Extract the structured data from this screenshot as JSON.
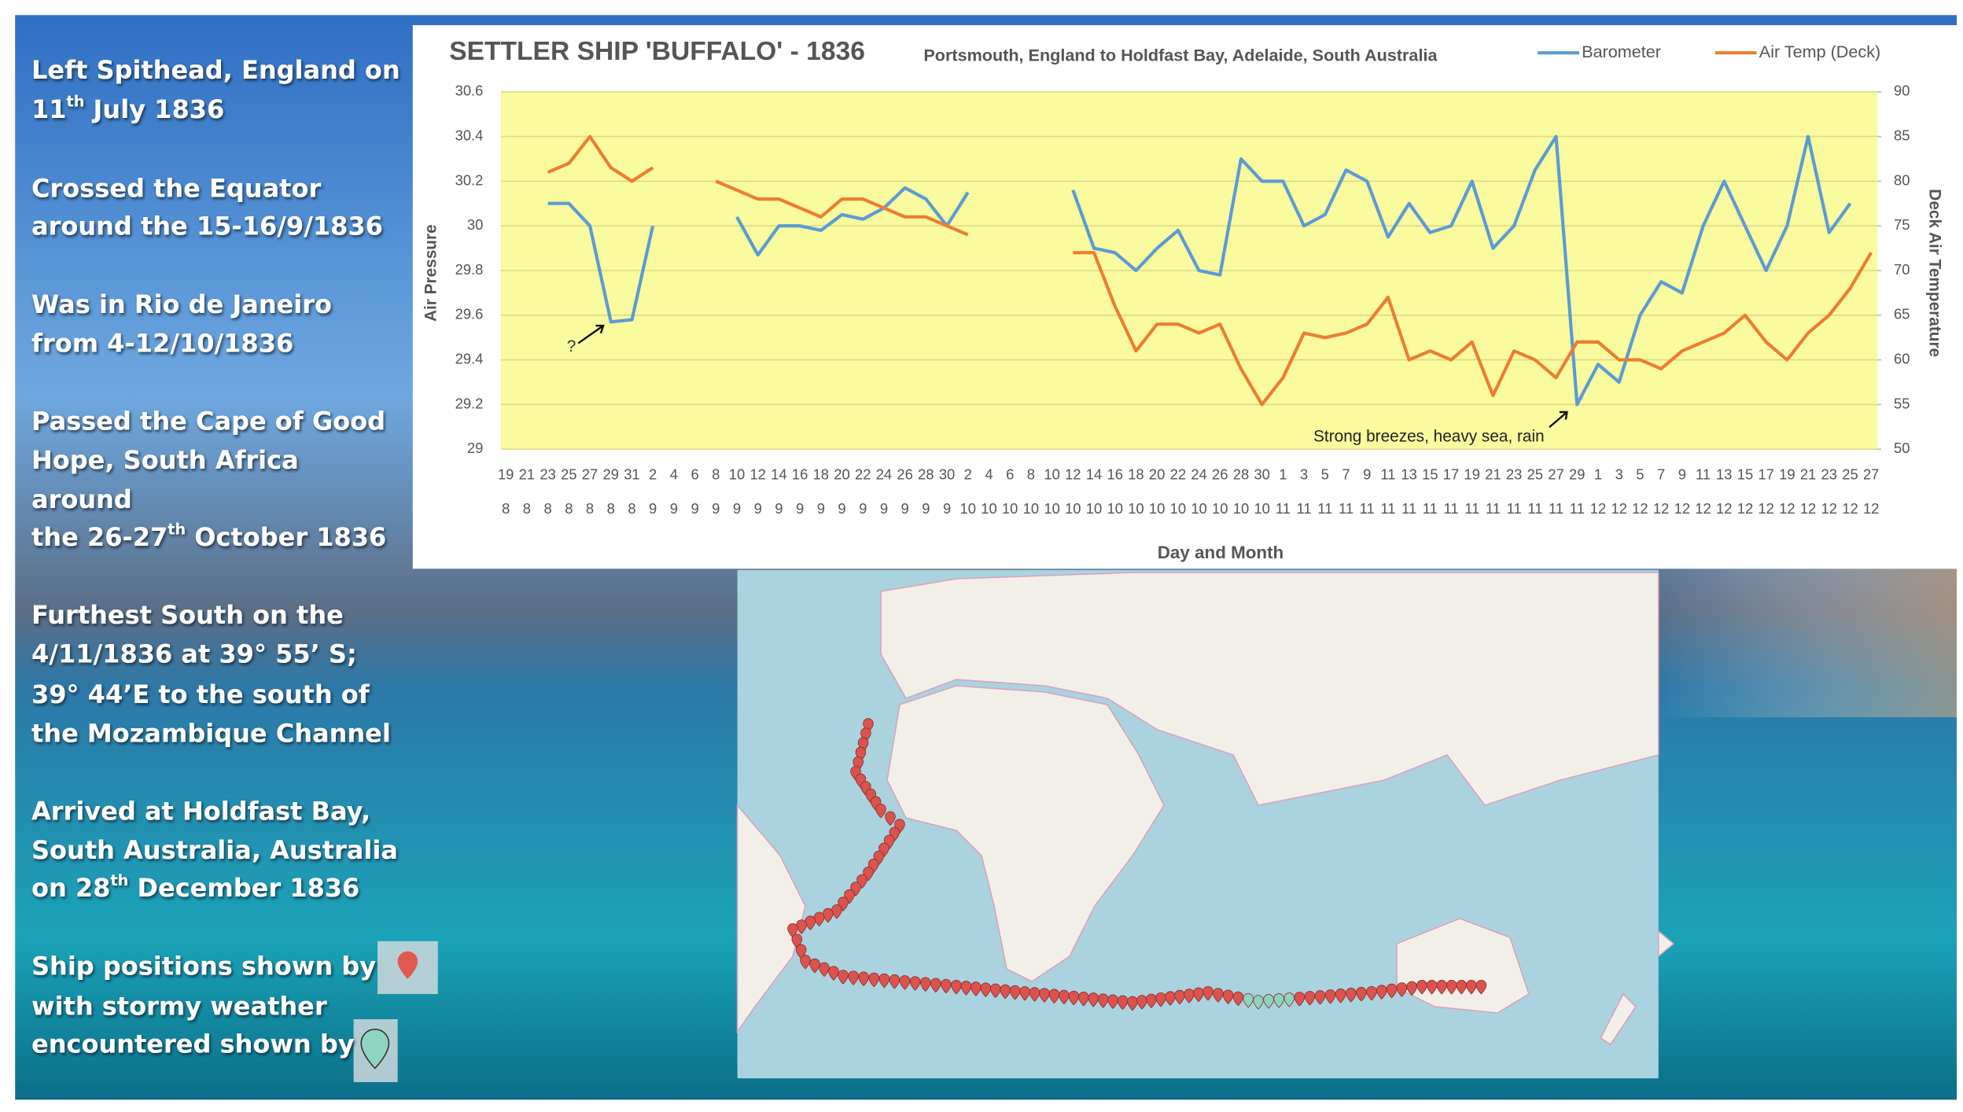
{
  "notes": [
    [
      [
        "Left Spithead, England on"
      ],
      [
        "11",
        {
          "sup": "th"
        },
        " July 1836"
      ]
    ],
    [
      [
        "Crossed the Equator"
      ],
      [
        "around the 15-16/9/1836"
      ]
    ],
    [
      [
        "Was in Rio de Janeiro"
      ],
      [
        "from 4-12/10/1836"
      ]
    ],
    [
      [
        "Passed the Cape of Good"
      ],
      [
        "Hope, South Africa"
      ],
      [
        "around"
      ],
      [
        "the 26-27",
        {
          "sup": "th"
        },
        " October 1836"
      ]
    ],
    [
      [
        "Furthest South on the"
      ],
      [
        "4/11/1836 at 39° 55’ S;"
      ],
      [
        "39° 44’E to the south of"
      ],
      [
        "the Mozambique Channel"
      ]
    ],
    [
      [
        "Arrived at Holdfast Bay,"
      ],
      [
        "South Australia, Australia"
      ],
      [
        "on 28",
        {
          "sup": "th"
        },
        " December 1836"
      ]
    ],
    [
      [
        "Ship positions shown by"
      ],
      [
        "with stormy weather"
      ],
      [
        "encountered shown by"
      ]
    ]
  ],
  "chart_data": {
    "type": "line",
    "title": "SETTLER SHIP 'BUFFALO' - 1836",
    "subtitle": "Portsmouth, England to Holdfast Bay, Adelaide, South Australia",
    "x_label": "Day and Month",
    "y_label": "Air Pressure",
    "y2_label": "Deck Air Temperature",
    "categories": [
      "19",
      "21",
      "23",
      "25",
      "27",
      "29",
      "31",
      "2",
      "4",
      "6",
      "8",
      "10",
      "12",
      "14",
      "16",
      "18",
      "20",
      "22",
      "24",
      "26",
      "28",
      "30",
      "2",
      "4",
      "6",
      "8",
      "10",
      "12",
      "14",
      "16",
      "18",
      "20",
      "22",
      "24",
      "26",
      "28",
      "30",
      "1",
      "3",
      "5",
      "7",
      "9",
      "11",
      "13",
      "15",
      "17",
      "19",
      "21",
      "23",
      "25",
      "27",
      "29",
      "1",
      "3",
      "5",
      "7",
      "9",
      "11",
      "13",
      "15",
      "17",
      "19",
      "21",
      "23",
      "25",
      "27"
    ],
    "category_months": [
      "8",
      "8",
      "8",
      "8",
      "8",
      "8",
      "8",
      "9",
      "9",
      "9",
      "9",
      "9",
      "9",
      "9",
      "9",
      "9",
      "9",
      "9",
      "9",
      "9",
      "9",
      "9",
      "10",
      "10",
      "10",
      "10",
      "10",
      "10",
      "10",
      "10",
      "10",
      "10",
      "10",
      "10",
      "10",
      "10",
      "10",
      "11",
      "11",
      "11",
      "11",
      "11",
      "11",
      "11",
      "11",
      "11",
      "11",
      "11",
      "11",
      "11",
      "11",
      "11",
      "12",
      "12",
      "12",
      "12",
      "12",
      "12",
      "12",
      "12",
      "12",
      "12",
      "12",
      "12",
      "12",
      "12"
    ],
    "series": [
      {
        "name": "Barometer",
        "color": "#5b9bd5",
        "values": [
          null,
          null,
          30.1,
          30.1,
          30.0,
          29.57,
          29.58,
          30.0,
          null,
          null,
          null,
          30.04,
          29.87,
          30.0,
          30.0,
          29.98,
          30.05,
          30.03,
          30.08,
          30.17,
          30.12,
          30.0,
          30.15,
          null,
          null,
          null,
          null,
          30.16,
          29.9,
          29.88,
          29.8,
          29.9,
          29.98,
          29.8,
          29.78,
          30.3,
          30.2,
          30.2,
          30.0,
          30.05,
          30.25,
          30.2,
          29.95,
          30.1,
          29.97,
          30.0,
          30.2,
          29.9,
          30.0,
          30.25,
          30.4,
          29.2,
          29.38,
          29.3,
          29.6,
          29.75,
          29.7,
          30.0,
          30.2,
          30.0,
          29.8,
          30.0,
          30.4,
          29.97,
          30.1,
          null
        ]
      },
      {
        "name": "Air Temp (Deck)",
        "color": "#ed7d31",
        "axis": "y2",
        "values": [
          null,
          null,
          81,
          82,
          85,
          81.5,
          80,
          81.5,
          null,
          null,
          80,
          79,
          78,
          78,
          77,
          76,
          78,
          78,
          77,
          76,
          76,
          75,
          74,
          null,
          null,
          null,
          null,
          72,
          72,
          66,
          61,
          64,
          64,
          63,
          64,
          59,
          55,
          58,
          63,
          62.5,
          63,
          64,
          67,
          60,
          61,
          60,
          62,
          56,
          61,
          60,
          58,
          62,
          62,
          60,
          60,
          59,
          61,
          62,
          63,
          65,
          62,
          60,
          63,
          65,
          68,
          72
        ]
      }
    ],
    "ylim": [
      29,
      30.6
    ],
    "yticks": [
      29,
      29.2,
      29.4,
      29.6,
      29.8,
      30,
      30.2,
      30.4,
      30.6
    ],
    "y2lim": [
      50,
      90
    ],
    "y2ticks": [
      50,
      55,
      60,
      65,
      70,
      75,
      80,
      85,
      90
    ],
    "legend": "top-right",
    "annotations": [
      {
        "text": "?",
        "index": 5
      },
      {
        "text": "Strong breezes, heavy sea, rain",
        "index": 51
      }
    ]
  }
}
